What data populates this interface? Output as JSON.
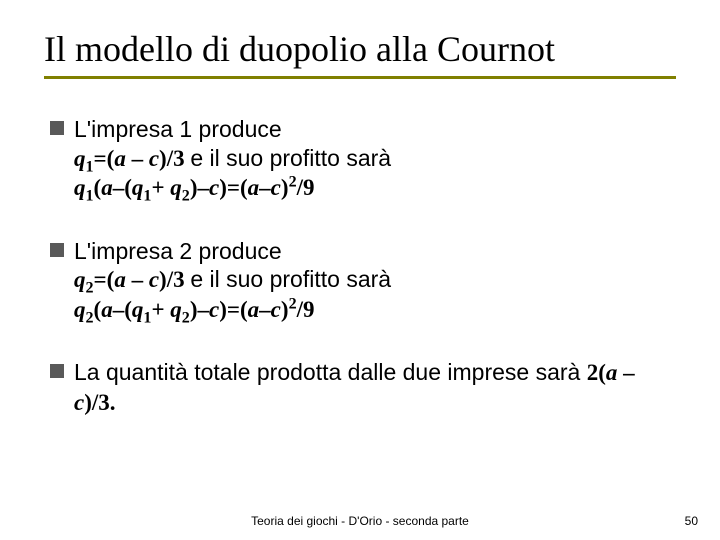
{
  "colors": {
    "rule": "#808000",
    "bullet": "#595959",
    "text": "#000000",
    "background": "#ffffff"
  },
  "typography": {
    "title_family": "Times New Roman",
    "body_family": "Arial",
    "math_family": "Times New Roman",
    "title_fontsize_pt": 28,
    "body_fontsize_pt": 18,
    "footer_fontsize_pt": 9
  },
  "title": "Il modello di duopolio alla Cournot",
  "bullets": [
    {
      "lead": "L'impresa 1 produce",
      "line2_pre": "q",
      "line2_sub1": "1",
      "line2_eq": "=(",
      "line2_a": "a",
      "line2_minus": " – ",
      "line2_c": "c",
      "line2_after": ")/3",
      "line2_tail": "   e il suo profitto sarà",
      "line3_q": "q",
      "line3_s1": "1",
      "line3_p1": "(",
      "line3_a": "a",
      "line3_m1": "–(",
      "line3_q2": "q",
      "line3_s1b": "1",
      "line3_plus": "+ ",
      "line3_q3": "q",
      "line3_s2": "2",
      "line3_p2": ")–",
      "line3_c": "c",
      "line3_p3": ")=(",
      "line3_a2": "a",
      "line3_m2": "–",
      "line3_c2": "c",
      "line3_p4": ")",
      "line3_sup": "2",
      "line3_tail": "/9"
    },
    {
      "lead": "L'impresa 2 produce",
      "line2_pre": "q",
      "line2_sub1": "2",
      "line2_eq": "=(",
      "line2_a": "a",
      "line2_minus": " – ",
      "line2_c": "c",
      "line2_after": ")/3",
      "line2_tail": "   e il suo profitto sarà",
      "line3_q": "q",
      "line3_s1": "2",
      "line3_p1": "(",
      "line3_a": "a",
      "line3_m1": "–(",
      "line3_q2": "q",
      "line3_s1b": "1",
      "line3_plus": "+ ",
      "line3_q3": "q",
      "line3_s2": "2",
      "line3_p2": ")–",
      "line3_c": "c",
      "line3_p3": ")=(",
      "line3_a2": "a",
      "line3_m2": "–",
      "line3_c2": "c",
      "line3_p4": ")",
      "line3_sup": "2",
      "line3_tail": "/9"
    },
    {
      "lead": "La quantità totale prodotta dalle due imprese sarà ",
      "f_open": "2(",
      "f_a": "a",
      "f_minus": " – ",
      "f_c": "c",
      "f_close": ")/3."
    }
  ],
  "footer": "Teoria dei giochi - D'Orio - seconda parte",
  "page_number": "50"
}
